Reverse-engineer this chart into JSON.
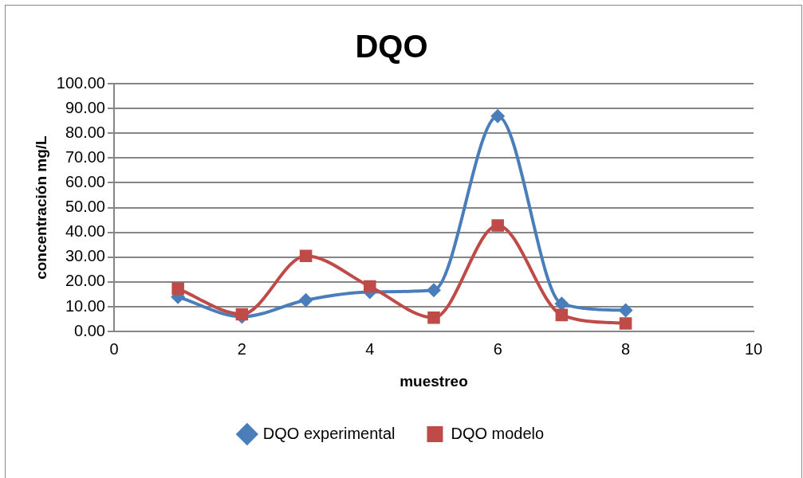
{
  "chart_data": {
    "type": "line",
    "title": "DQO",
    "xlabel": "muestreo",
    "ylabel": "concentración mg/L",
    "x": [
      1,
      2,
      3,
      4,
      5,
      6,
      7,
      8
    ],
    "series": [
      {
        "name": "DQO experimental",
        "color": "#4a7ebb",
        "marker": "diamond",
        "values": [
          14.0,
          6.0,
          12.7,
          16.0,
          16.7,
          86.9,
          11.2,
          8.6
        ]
      },
      {
        "name": "DQO modelo",
        "color": "#be4b48",
        "marker": "square",
        "values": [
          17.3,
          7.0,
          30.5,
          18.2,
          5.6,
          42.8,
          6.7,
          3.3
        ]
      }
    ],
    "xlim": [
      0,
      10
    ],
    "xticks": [
      0,
      2,
      4,
      6,
      8,
      10
    ],
    "ylim": [
      0,
      100
    ],
    "yticks": [
      {
        "value": 0,
        "label": "0.00"
      },
      {
        "value": 10,
        "label": "10.00"
      },
      {
        "value": 20,
        "label": "20.00"
      },
      {
        "value": 30,
        "label": "30.00"
      },
      {
        "value": 40,
        "label": "40.00"
      },
      {
        "value": 50,
        "label": "50.00"
      },
      {
        "value": 60,
        "label": "60.00"
      },
      {
        "value": 70,
        "label": "70.00"
      },
      {
        "value": 80,
        "label": "80.00"
      },
      {
        "value": 90,
        "label": "90.00"
      },
      {
        "value": 100,
        "label": "100.00"
      }
    ],
    "grid": "y",
    "legend": "bottom"
  }
}
